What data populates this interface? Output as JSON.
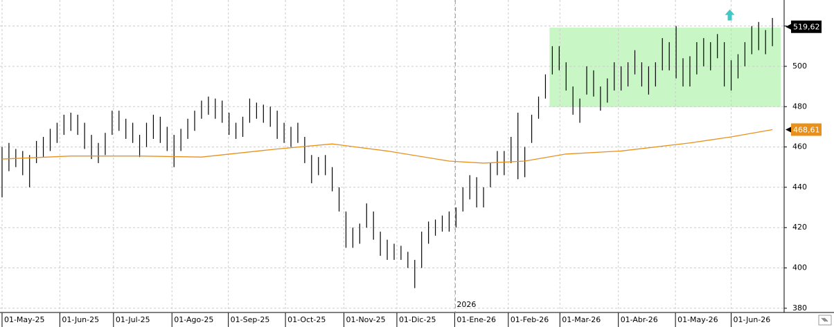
{
  "chart_data": {
    "type": "ohlc",
    "high": [
      460,
      462,
      459,
      458,
      456,
      463,
      465,
      469,
      472,
      476,
      477,
      476,
      472,
      466,
      462,
      467,
      478,
      478,
      474,
      472,
      466,
      472,
      476,
      475,
      470,
      466,
      469,
      474,
      478,
      483,
      485,
      484,
      483,
      477,
      472,
      475,
      484,
      482,
      481,
      480,
      478,
      472,
      470,
      472,
      465,
      456,
      455,
      456,
      450,
      440,
      428,
      420,
      422,
      432,
      428,
      418,
      414,
      412,
      411,
      408,
      404,
      418,
      423,
      424,
      426,
      428,
      430,
      440,
      446,
      445,
      440,
      452,
      458,
      458,
      465,
      477,
      460,
      476,
      485,
      496,
      510,
      510,
      502,
      490,
      484,
      500,
      498,
      490,
      494,
      502,
      500,
      502,
      508,
      502,
      500,
      502,
      514,
      512,
      520,
      504,
      505,
      512,
      514,
      512,
      516,
      512,
      503,
      506,
      512,
      520,
      522,
      518,
      524
    ],
    "low": [
      435,
      448,
      450,
      446,
      440,
      452,
      455,
      458,
      462,
      466,
      468,
      466,
      459,
      454,
      452,
      456,
      466,
      468,
      464,
      462,
      455,
      460,
      464,
      462,
      458,
      450,
      458,
      464,
      468,
      474,
      476,
      474,
      472,
      466,
      464,
      465,
      472,
      474,
      472,
      470,
      464,
      462,
      460,
      462,
      452,
      442,
      446,
      446,
      438,
      428,
      410,
      410,
      412,
      420,
      414,
      406,
      404,
      404,
      404,
      400,
      390,
      400,
      412,
      416,
      418,
      418,
      420,
      428,
      434,
      430,
      430,
      440,
      446,
      446,
      452,
      444,
      445,
      462,
      474,
      484,
      496,
      498,
      488,
      476,
      472,
      486,
      485,
      478,
      482,
      488,
      488,
      490,
      496,
      490,
      486,
      490,
      498,
      498,
      494,
      490,
      490,
      496,
      500,
      498,
      504,
      490,
      488,
      494,
      500,
      506,
      508,
      506,
      510
    ],
    "bar_color": "#000000",
    "moving_average": {
      "color": "#e8901a",
      "x": [
        0,
        10,
        20,
        29,
        40,
        48,
        56,
        65,
        70,
        76,
        82,
        90,
        100,
        106,
        112
      ],
      "values": [
        454,
        455.5,
        455.5,
        455,
        459,
        461.5,
        458,
        453,
        452,
        453,
        456.5,
        458,
        462,
        465,
        468.6
      ]
    },
    "xlim": [
      -0.3,
      113.7
    ],
    "xticks": [
      {
        "value": 0,
        "label": "01-May-25"
      },
      {
        "value": 8.4,
        "label": "01-Jun-25"
      },
      {
        "value": 16.2,
        "label": "01-Jul-25"
      },
      {
        "value": 24.7,
        "label": "01-Ago-25"
      },
      {
        "value": 32.9,
        "label": "01-Sep-25"
      },
      {
        "value": 41.2,
        "label": "01-Oct-25"
      },
      {
        "value": 49.7,
        "label": "01-Nov-25"
      },
      {
        "value": 57.4,
        "label": "01-Dic-25"
      },
      {
        "value": 65.8,
        "label": "01-Ene-26"
      },
      {
        "value": 73.6,
        "label": "01-Feb-26"
      },
      {
        "value": 81.1,
        "label": "01-Mar-26"
      },
      {
        "value": 89.6,
        "label": "01-Abr-26"
      },
      {
        "value": 97.9,
        "label": "01-May-26"
      },
      {
        "value": 106.0,
        "label": "01-Jun-26"
      }
    ],
    "ylim": [
      377.9,
      532.9
    ],
    "yticks": [
      380,
      400,
      420,
      440,
      460,
      480,
      500,
      520
    ],
    "grid": true,
    "year_divider": {
      "x": 65.9,
      "label": "2026"
    },
    "highlight_box": {
      "xlim": [
        79.6,
        113.2
      ],
      "ylim": [
        479.8,
        519.2
      ],
      "color": "#c8f7c5"
    },
    "arrow_marker": {
      "x": 105.8,
      "y": 525.5,
      "color": "#40c8c8"
    },
    "last_price": {
      "value": 519.62,
      "label": "519,62",
      "color": "#000000"
    },
    "ma_price": {
      "value": 468.61,
      "label": "468,61",
      "color": "#e8901a"
    }
  }
}
